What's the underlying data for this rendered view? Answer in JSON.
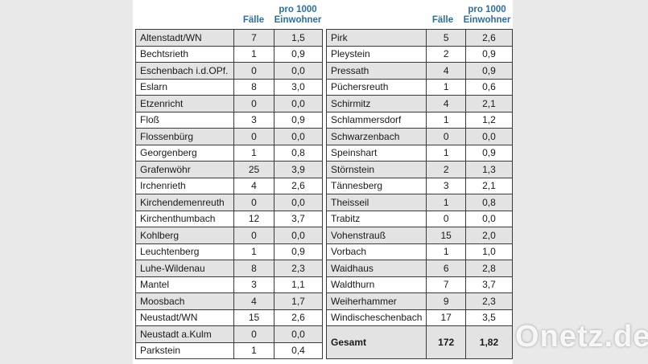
{
  "header": {
    "cases": "Fälle",
    "per_1000": "pro 1000 Einwohner"
  },
  "left_table": {
    "rows": [
      [
        "Altenstadt/WN",
        7,
        "1,5"
      ],
      [
        "Bechtsrieth",
        1,
        "0,9"
      ],
      [
        "Eschenbach i.d.OPf.",
        0,
        "0,0"
      ],
      [
        "Eslarn",
        8,
        "3,0"
      ],
      [
        "Etzenricht",
        0,
        "0,0"
      ],
      [
        "Floß",
        3,
        "0,9"
      ],
      [
        "Flossenbürg",
        0,
        "0,0"
      ],
      [
        "Georgenberg",
        1,
        "0,8"
      ],
      [
        "Grafenwöhr",
        25,
        "3,9"
      ],
      [
        "Irchenrieth",
        4,
        "2,6"
      ],
      [
        "Kirchendemenreuth",
        0,
        "0,0"
      ],
      [
        "Kirchenthumbach",
        12,
        "3,7"
      ],
      [
        "Kohlberg",
        0,
        "0,0"
      ],
      [
        "Leuchtenberg",
        1,
        "0,9"
      ],
      [
        "Luhe-Wildenau",
        8,
        "2,3"
      ],
      [
        "Mantel",
        3,
        "1,1"
      ],
      [
        "Moosbach",
        4,
        "1,7"
      ],
      [
        "Neustadt/WN",
        15,
        "2,6"
      ],
      [
        "Neustadt a.Kulm",
        0,
        "0,0"
      ],
      [
        "Parkstein",
        1,
        "0,4"
      ]
    ]
  },
  "right_table": {
    "rows": [
      [
        "Pirk",
        5,
        "2,6"
      ],
      [
        "Pleystein",
        2,
        "0,9"
      ],
      [
        "Pressath",
        4,
        "0,9"
      ],
      [
        "Püchersreuth",
        1,
        "0,6"
      ],
      [
        "Schirmitz",
        4,
        "2,1"
      ],
      [
        "Schlammersdorf",
        1,
        "1,2"
      ],
      [
        "Schwarzenbach",
        0,
        "0,0"
      ],
      [
        "Speinshart",
        1,
        "0,9"
      ],
      [
        "Störnstein",
        2,
        "1,3"
      ],
      [
        "Tännesberg",
        3,
        "2,1"
      ],
      [
        "Theisseil",
        1,
        "0,8"
      ],
      [
        "Trabitz",
        0,
        "0,0"
      ],
      [
        "Vohenstrauß",
        15,
        "2,0"
      ],
      [
        "Vorbach",
        1,
        "1,0"
      ],
      [
        "Waidhaus",
        6,
        "2,8"
      ],
      [
        "Waldthurn",
        7,
        "3,7"
      ],
      [
        "Weiherhammer",
        9,
        "2,3"
      ],
      [
        "Windischeschenbach",
        17,
        "3,5"
      ]
    ],
    "total": [
      "Gesamt",
      172,
      "1,82"
    ]
  },
  "watermark": "Onetz.de"
}
